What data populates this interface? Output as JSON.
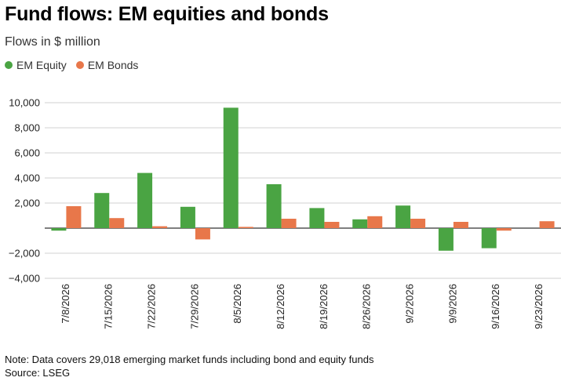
{
  "title": "Fund flows: EM equities and bonds",
  "subtitle": "Flows in $ million",
  "note": "Note: Data covers 29,018 emerging market funds including bond and equity funds",
  "source": "Source: LSEG",
  "chart_data": {
    "type": "bar",
    "categories": [
      "7/8/2026",
      "7/15/2026",
      "7/22/2026",
      "7/29/2026",
      "8/5/2026",
      "8/12/2026",
      "8/19/2026",
      "8/26/2026",
      "9/2/2026",
      "9/9/2026",
      "9/16/2026",
      "9/23/2026"
    ],
    "series": [
      {
        "name": "EM Equity",
        "color": "#4aa443",
        "values": [
          -200,
          2800,
          4400,
          1700,
          9600,
          3500,
          1600,
          700,
          1800,
          -1800,
          -1600,
          0
        ]
      },
      {
        "name": "EM Bonds",
        "color": "#e8774a",
        "values": [
          1750,
          800,
          150,
          -900,
          100,
          750,
          500,
          950,
          750,
          500,
          -200,
          550
        ]
      }
    ],
    "ylim": [
      -4000,
      10000
    ],
    "yticks": [
      -4000,
      -2000,
      0,
      2000,
      4000,
      6000,
      8000,
      10000
    ],
    "ytick_labels": [
      "−4,000",
      "−2,000",
      "",
      "2,000",
      "4,000",
      "6,000",
      "8,000",
      "10,000"
    ],
    "xlabel": "",
    "ylabel": "",
    "grid": true,
    "legend_position": "top-left"
  }
}
